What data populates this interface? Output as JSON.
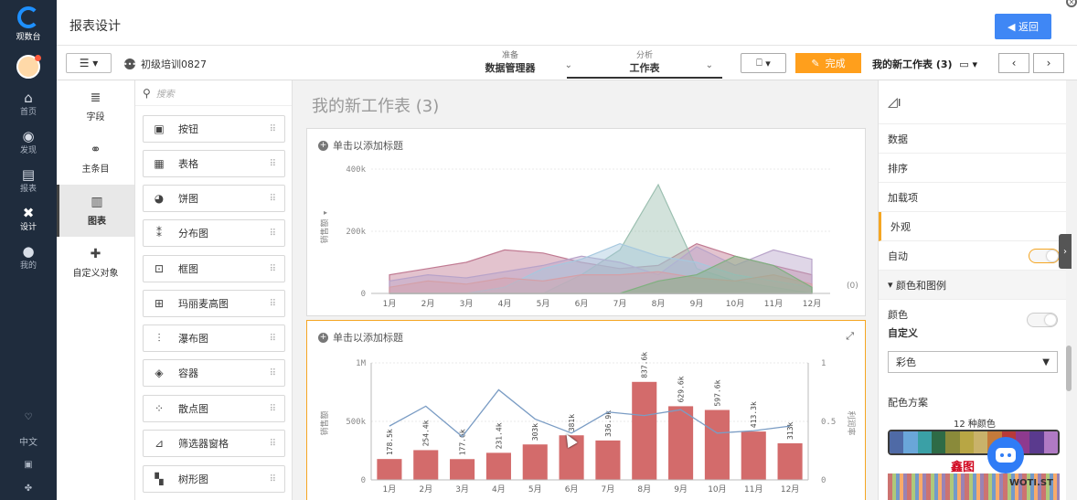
{
  "nav": {
    "logo_text": "观数台",
    "items": [
      {
        "label": "首页",
        "icon": "home-icon"
      },
      {
        "label": "发现",
        "icon": "compass-icon"
      },
      {
        "label": "报表",
        "icon": "report-icon"
      },
      {
        "label": "设计",
        "icon": "design-icon"
      },
      {
        "label": "我的",
        "icon": "user-icon"
      }
    ],
    "bottom": [
      {
        "label": "",
        "icon": "bulb-icon"
      },
      {
        "label": "中文",
        "icon": "language-icon"
      },
      {
        "label": "",
        "icon": "scan-icon"
      },
      {
        "label": "",
        "icon": "help-icon"
      }
    ]
  },
  "header": {
    "title": "报表设计",
    "back_label": "返回"
  },
  "toolbar": {
    "datasource": "初级培训0827",
    "tabs": [
      {
        "small": "准备",
        "big": "数据管理器"
      },
      {
        "small": "分析",
        "big": "工作表"
      }
    ],
    "done_label": "完成",
    "sheet_selector": "我的新工作表 (3)"
  },
  "left_panel": [
    {
      "label": "字段",
      "icon": "database-icon"
    },
    {
      "label": "主条目",
      "icon": "link-icon"
    },
    {
      "label": "图表",
      "icon": "chart-icon"
    },
    {
      "label": "自定义对象",
      "icon": "puzzle-icon"
    }
  ],
  "chart_list": {
    "search_placeholder": "搜索",
    "items": [
      {
        "label": "按钮",
        "icon": "button-icon"
      },
      {
        "label": "表格",
        "icon": "table-icon"
      },
      {
        "label": "饼图",
        "icon": "pie-icon"
      },
      {
        "label": "分布图",
        "icon": "distribution-icon"
      },
      {
        "label": "框图",
        "icon": "boxplot-icon"
      },
      {
        "label": "玛丽麦高图",
        "icon": "mekko-icon"
      },
      {
        "label": "瀑布图",
        "icon": "waterfall-icon"
      },
      {
        "label": "容器",
        "icon": "container-icon"
      },
      {
        "label": "散点图",
        "icon": "scatter-icon"
      },
      {
        "label": "筛选器窗格",
        "icon": "filter-pane-icon"
      },
      {
        "label": "树形图",
        "icon": "treemap-icon"
      }
    ]
  },
  "canvas": {
    "sheet_title": "我的新工作表 (3)",
    "add_title": "单击以添加标题"
  },
  "chart_data": [
    {
      "type": "area",
      "categories": [
        "1月",
        "2月",
        "3月",
        "4月",
        "5月",
        "6月",
        "7月",
        "8月",
        "9月",
        "10月",
        "11月",
        "12月"
      ],
      "ylabel": "销售额",
      "ylim": [
        0,
        400000
      ],
      "yticks": [
        "0",
        "200k",
        "400k"
      ],
      "right_label": "(0)",
      "series": [
        {
          "color": "#c07a92",
          "values": [
            60000,
            80000,
            100000,
            140000,
            130000,
            100000,
            80000,
            90000,
            160000,
            120000,
            90000,
            60000
          ]
        },
        {
          "color": "#9bbfb0",
          "values": [
            0,
            0,
            0,
            0,
            0,
            60000,
            140000,
            350000,
            80000,
            40000,
            20000,
            0
          ]
        },
        {
          "color": "#b8a3c9",
          "values": [
            40000,
            60000,
            50000,
            70000,
            90000,
            120000,
            100000,
            60000,
            150000,
            90000,
            140000,
            110000
          ]
        },
        {
          "color": "#a6c8de",
          "values": [
            0,
            0,
            0,
            20000,
            80000,
            110000,
            160000,
            120000,
            100000,
            60000,
            40000,
            20000
          ]
        },
        {
          "color": "#d4a0a8",
          "values": [
            20000,
            40000,
            30000,
            50000,
            40000,
            60000,
            60000,
            70000,
            50000,
            40000,
            60000,
            30000
          ]
        },
        {
          "color": "#7fb07f",
          "values": [
            0,
            0,
            0,
            0,
            0,
            0,
            0,
            40000,
            60000,
            120000,
            90000,
            20000
          ]
        }
      ]
    },
    {
      "type": "bar",
      "categories": [
        "1月",
        "2月",
        "3月",
        "4月",
        "5月",
        "6月",
        "7月",
        "8月",
        "9月",
        "10月",
        "11月",
        "12月"
      ],
      "ylabel": "销售额",
      "y2label": "利润率",
      "ylim": [
        0,
        1000000
      ],
      "y2lim": [
        0,
        1
      ],
      "yticks": [
        "0",
        "500k",
        "1M"
      ],
      "y2ticks": [
        "0",
        "0.5",
        "1"
      ],
      "bar_color": "#d36b6b",
      "bar_labels": [
        "178.5k",
        "254.4k",
        "177.6k",
        "231.4k",
        "303k",
        "381k",
        "336.9k",
        "837.6k",
        "629.6k",
        "597.6k",
        "413.3k",
        "313k"
      ],
      "values": [
        178500,
        254400,
        177600,
        231400,
        303000,
        381000,
        336900,
        837600,
        629600,
        597600,
        413300,
        313000
      ],
      "line_values": [
        0.46,
        0.63,
        0.37,
        0.77,
        0.52,
        0.4,
        0.58,
        0.55,
        0.6,
        0.4,
        0.42,
        0.46
      ]
    }
  ],
  "right_panel": {
    "items": [
      "数据",
      "排序",
      "加载项",
      "外观"
    ],
    "auto_label": "自动",
    "section_label": "颜色和图例",
    "color_label": "颜色",
    "custom_label": "自定义",
    "color_mode": "彩色",
    "scheme_label": "配色方案",
    "scheme_count": "12 种颜色",
    "palette": [
      "#4f6aa6",
      "#6aa6d9",
      "#3aa0a6",
      "#2e6b46",
      "#8a8a3a",
      "#b8a644",
      "#c9b26a",
      "#c47a3a",
      "#b83a3a",
      "#8e3a8e",
      "#5a3a8e",
      "#b07ac4"
    ]
  },
  "watermark": {
    "text": "鑫图",
    "sub": "WOTI.ST"
  }
}
